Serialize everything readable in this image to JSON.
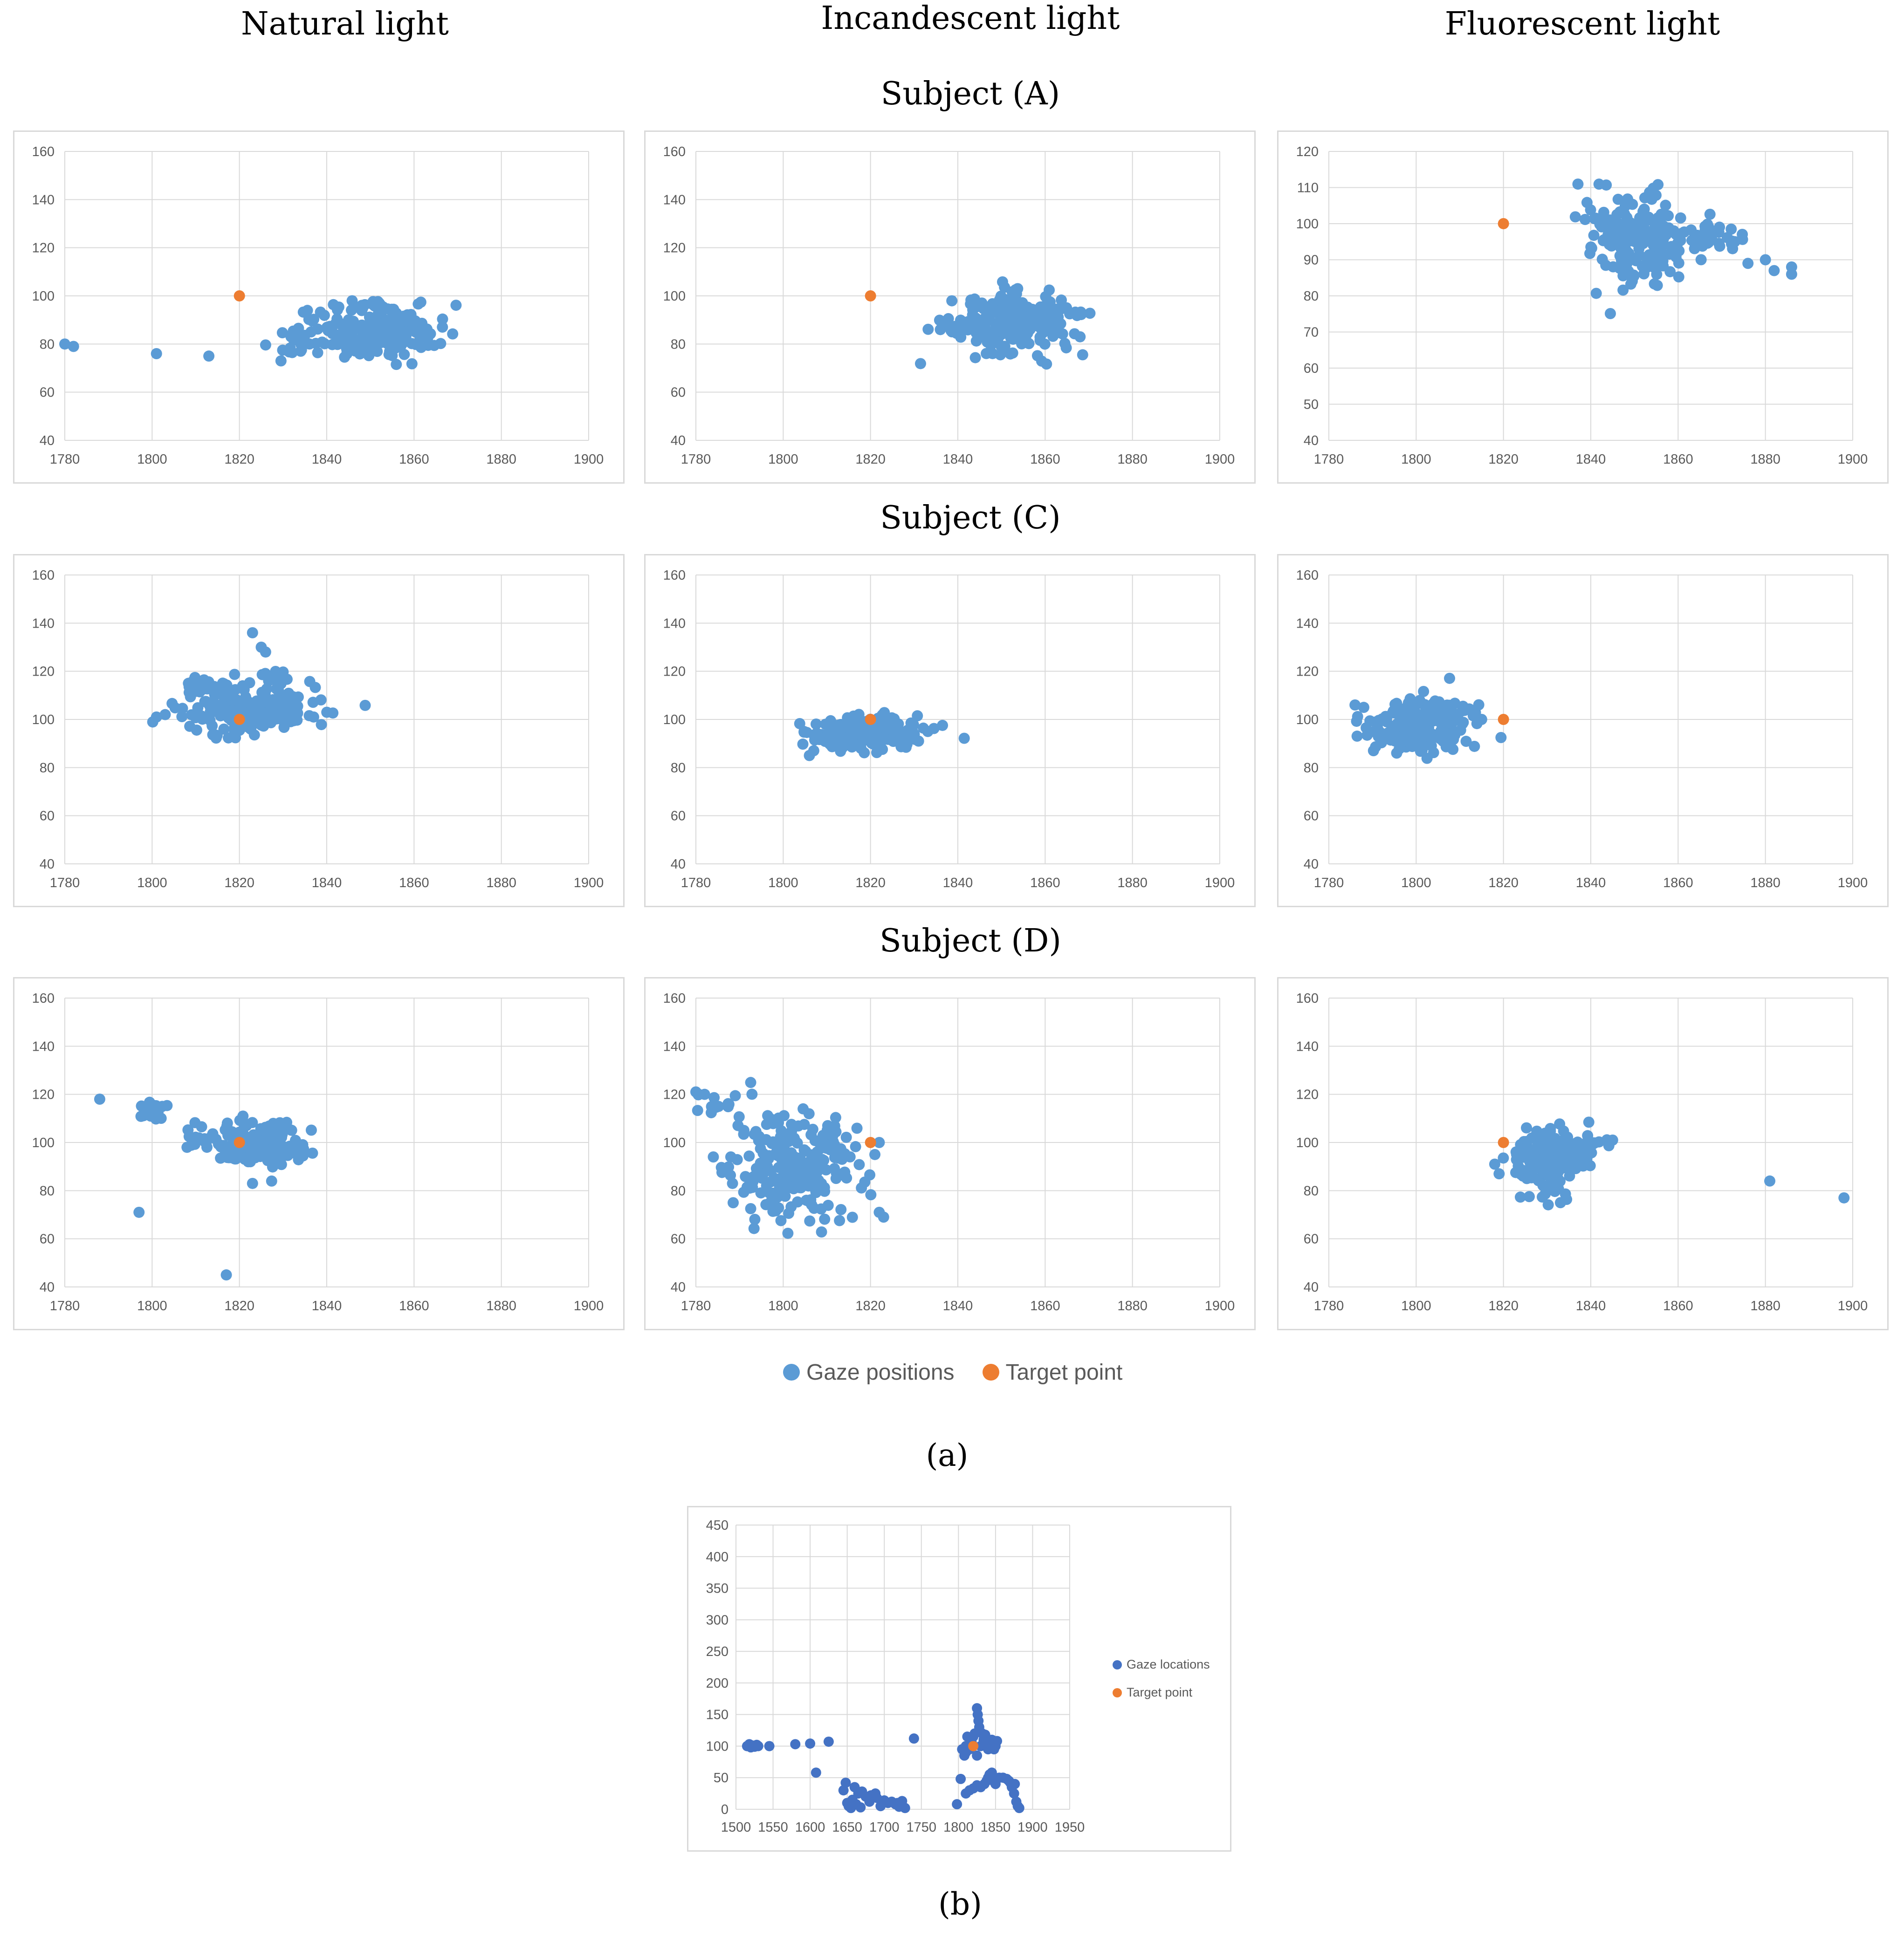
{
  "colors": {
    "gaze": "#5b9bd5",
    "target": "#ed7d31",
    "gaze_b": "#4472c4",
    "grid": "#d9d9d9",
    "axis_text": "#595959"
  },
  "columns": [
    "Natural light",
    "Incandescent light",
    "Fluorescent light"
  ],
  "subjects": [
    "Subject (A)",
    "Subject (C)",
    "Subject (D)"
  ],
  "legend": {
    "gaze": "Gaze positions",
    "target": "Target point"
  },
  "caption_a": "(a)",
  "caption_b": "(b)",
  "chart_data": [
    {
      "id": "A-natural",
      "type": "scatter",
      "subject": "Subject (A)",
      "lighting": "Natural light",
      "xlim": [
        1780,
        1900
      ],
      "ylim": [
        40,
        160
      ],
      "xticks": [
        1780,
        1800,
        1820,
        1840,
        1860,
        1880,
        1900
      ],
      "yticks": [
        40,
        60,
        80,
        100,
        120,
        140,
        160
      ],
      "target": [
        1820,
        100
      ],
      "outliers": [
        [
          1780,
          80
        ],
        [
          1782,
          79
        ],
        [
          1801,
          76
        ],
        [
          1813,
          75
        ]
      ],
      "clusters": [
        {
          "cx": 1848,
          "cy": 84,
          "sx": 8,
          "sy": 5,
          "n": 170
        },
        {
          "cx": 1857,
          "cy": 88,
          "sx": 4,
          "sy": 4,
          "n": 40
        },
        {
          "cx": 1833,
          "cy": 80,
          "sx": 2,
          "sy": 3,
          "n": 12
        },
        {
          "cx": 1848,
          "cy": 96,
          "sx": 5,
          "sy": 1,
          "n": 14
        }
      ]
    },
    {
      "id": "A-incandescent",
      "type": "scatter",
      "subject": "Subject (A)",
      "lighting": "Incandescent light",
      "xlim": [
        1780,
        1900
      ],
      "ylim": [
        40,
        160
      ],
      "xticks": [
        1780,
        1800,
        1820,
        1840,
        1860,
        1880,
        1900
      ],
      "yticks": [
        40,
        60,
        80,
        100,
        120,
        140,
        160
      ],
      "target": [
        1820,
        100
      ],
      "outliers": [
        [
          1836,
          86
        ],
        [
          1868,
          83
        ]
      ],
      "clusters": [
        {
          "cx": 1851,
          "cy": 88,
          "sx": 6,
          "sy": 6,
          "n": 190
        },
        {
          "cx": 1840,
          "cy": 86,
          "sx": 3,
          "sy": 1,
          "n": 10
        },
        {
          "cx": 1862,
          "cy": 92,
          "sx": 3,
          "sy": 3,
          "n": 20
        }
      ]
    },
    {
      "id": "A-fluorescent",
      "type": "scatter",
      "subject": "Subject (A)",
      "lighting": "Fluorescent light",
      "xlim": [
        1780,
        1900
      ],
      "ylim": [
        40,
        120
      ],
      "xticks": [
        1780,
        1800,
        1820,
        1840,
        1860,
        1880,
        1900
      ],
      "yticks": [
        40,
        50,
        60,
        70,
        80,
        90,
        100,
        110,
        120
      ],
      "target": [
        1820,
        100
      ],
      "outliers": [
        [
          1876,
          89
        ],
        [
          1880,
          90
        ],
        [
          1886,
          86
        ],
        [
          1886,
          88
        ],
        [
          1882,
          87
        ]
      ],
      "clusters": [
        {
          "cx": 1852,
          "cy": 96,
          "sx": 5,
          "sy": 6,
          "n": 170
        },
        {
          "cx": 1867,
          "cy": 96,
          "sx": 4,
          "sy": 2,
          "n": 30
        },
        {
          "cx": 1842,
          "cy": 102,
          "sx": 2,
          "sy": 4,
          "n": 20
        }
      ]
    },
    {
      "id": "C-natural",
      "type": "scatter",
      "subject": "Subject (C)",
      "lighting": "Natural light",
      "xlim": [
        1780,
        1900
      ],
      "ylim": [
        40,
        160
      ],
      "xticks": [
        1780,
        1800,
        1820,
        1840,
        1860,
        1880,
        1900
      ],
      "yticks": [
        40,
        60,
        80,
        100,
        120,
        140,
        160
      ],
      "target": [
        1820,
        100
      ],
      "outliers": [
        [
          1823,
          136
        ],
        [
          1825,
          130
        ],
        [
          1826,
          128
        ],
        [
          1801,
          101
        ],
        [
          1803,
          102
        ],
        [
          1837,
          101
        ]
      ],
      "clusters": [
        {
          "cx": 1822,
          "cy": 104,
          "sx": 8,
          "sy": 5,
          "n": 200
        },
        {
          "cx": 1812,
          "cy": 114,
          "sx": 3,
          "sy": 2,
          "n": 20
        },
        {
          "cx": 1829,
          "cy": 118,
          "sx": 2,
          "sy": 2,
          "n": 10
        }
      ]
    },
    {
      "id": "C-incandescent",
      "type": "scatter",
      "subject": "Subject (C)",
      "lighting": "Incandescent light",
      "xlim": [
        1780,
        1900
      ],
      "ylim": [
        40,
        160
      ],
      "xticks": [
        1780,
        1800,
        1820,
        1840,
        1860,
        1880,
        1900
      ],
      "yticks": [
        40,
        60,
        80,
        100,
        120,
        140,
        160
      ],
      "target": [
        1820,
        100
      ],
      "outliers": [
        [
          1806,
          85
        ],
        [
          1807,
          87
        ],
        [
          1831,
          91
        ]
      ],
      "clusters": [
        {
          "cx": 1818,
          "cy": 94,
          "sx": 6,
          "sy": 3.5,
          "n": 210
        }
      ]
    },
    {
      "id": "C-fluorescent",
      "type": "scatter",
      "subject": "Subject (C)",
      "lighting": "Fluorescent light",
      "xlim": [
        1780,
        1900
      ],
      "ylim": [
        40,
        160
      ],
      "xticks": [
        1780,
        1800,
        1820,
        1840,
        1860,
        1880,
        1900
      ],
      "yticks": [
        40,
        60,
        80,
        100,
        120,
        140,
        160
      ],
      "target": [
        1820,
        100
      ],
      "outliers": [
        [
          1786,
          106
        ],
        [
          1788,
          105
        ],
        [
          1815,
          100
        ]
      ],
      "clusters": [
        {
          "cx": 1800,
          "cy": 97,
          "sx": 6,
          "sy": 5,
          "n": 200
        },
        {
          "cx": 1807,
          "cy": 104,
          "sx": 3,
          "sy": 2,
          "n": 30
        }
      ]
    },
    {
      "id": "D-natural",
      "type": "scatter",
      "subject": "Subject (D)",
      "lighting": "Natural light",
      "xlim": [
        1780,
        1900
      ],
      "ylim": [
        40,
        160
      ],
      "xticks": [
        1780,
        1800,
        1820,
        1840,
        1860,
        1880,
        1900
      ],
      "yticks": [
        40,
        60,
        80,
        100,
        120,
        140,
        160
      ],
      "target": [
        1820,
        100
      ],
      "outliers": [
        [
          1788,
          118
        ],
        [
          1797,
          71
        ],
        [
          1817,
          45
        ],
        [
          1823,
          83
        ],
        [
          1808,
          98
        ]
      ],
      "clusters": [
        {
          "cx": 1825,
          "cy": 99,
          "sx": 5,
          "sy": 5,
          "n": 170
        },
        {
          "cx": 1800,
          "cy": 113,
          "sx": 2,
          "sy": 2,
          "n": 20
        },
        {
          "cx": 1812,
          "cy": 103,
          "sx": 3,
          "sy": 3,
          "n": 15
        }
      ]
    },
    {
      "id": "D-incandescent",
      "type": "scatter",
      "subject": "Subject (D)",
      "lighting": "Incandescent light",
      "xlim": [
        1780,
        1900
      ],
      "ylim": [
        40,
        160
      ],
      "xticks": [
        1780,
        1800,
        1820,
        1840,
        1860,
        1880,
        1900
      ],
      "yticks": [
        40,
        60,
        80,
        100,
        120,
        140,
        160
      ],
      "target": [
        1820,
        100
      ],
      "outliers": [
        [
          1780,
          121
        ],
        [
          1782,
          120
        ],
        [
          1784,
          94
        ],
        [
          1788,
          94
        ],
        [
          1821,
          95
        ],
        [
          1822,
          100
        ],
        [
          1823,
          69
        ],
        [
          1822,
          71
        ],
        [
          1791,
          105
        ]
      ],
      "clusters": [
        {
          "cx": 1802,
          "cy": 90,
          "sx": 6,
          "sy": 11,
          "n": 220
        },
        {
          "cx": 1784,
          "cy": 116,
          "sx": 3,
          "sy": 3,
          "n": 12
        },
        {
          "cx": 1812,
          "cy": 100,
          "sx": 3,
          "sy": 4,
          "n": 20
        }
      ]
    },
    {
      "id": "D-fluorescent",
      "type": "scatter",
      "subject": "Subject (D)",
      "lighting": "Fluorescent light",
      "xlim": [
        1780,
        1900
      ],
      "ylim": [
        40,
        160
      ],
      "xticks": [
        1780,
        1800,
        1820,
        1840,
        1860,
        1880,
        1900
      ],
      "yticks": [
        40,
        60,
        80,
        100,
        120,
        140,
        160
      ],
      "target": [
        1820,
        100
      ],
      "outliers": [
        [
          1881,
          84
        ],
        [
          1898,
          77
        ],
        [
          1845,
          101
        ],
        [
          1818,
          91
        ],
        [
          1819,
          87
        ]
      ],
      "clusters": [
        {
          "cx": 1830,
          "cy": 94,
          "sx": 4,
          "sy": 6,
          "n": 180
        },
        {
          "cx": 1840,
          "cy": 98,
          "sx": 3,
          "sy": 2,
          "n": 15
        },
        {
          "cx": 1830,
          "cy": 77,
          "sx": 2,
          "sy": 3,
          "n": 10
        }
      ]
    },
    {
      "id": "b",
      "type": "scatter",
      "caption": "(b)",
      "xlim": [
        1500,
        1950
      ],
      "ylim": [
        0,
        450
      ],
      "xticks": [
        1500,
        1550,
        1600,
        1650,
        1700,
        1750,
        1800,
        1850,
        1900,
        1950
      ],
      "yticks": [
        0,
        50,
        100,
        150,
        200,
        250,
        300,
        350,
        400,
        450
      ],
      "legend": {
        "gaze": "Gaze locations",
        "target": "Target point"
      },
      "target": [
        1820,
        100
      ],
      "points": [
        [
          1515,
          100
        ],
        [
          1518,
          103
        ],
        [
          1520,
          98
        ],
        [
          1522,
          101
        ],
        [
          1525,
          99
        ],
        [
          1528,
          102
        ],
        [
          1530,
          100
        ],
        [
          1545,
          100
        ],
        [
          1580,
          103
        ],
        [
          1600,
          104
        ],
        [
          1608,
          58
        ],
        [
          1625,
          107
        ],
        [
          1645,
          30
        ],
        [
          1648,
          42
        ],
        [
          1650,
          10
        ],
        [
          1652,
          5
        ],
        [
          1655,
          2
        ],
        [
          1657,
          15
        ],
        [
          1660,
          35
        ],
        [
          1662,
          8
        ],
        [
          1665,
          25
        ],
        [
          1668,
          3
        ],
        [
          1670,
          28
        ],
        [
          1675,
          20
        ],
        [
          1680,
          12
        ],
        [
          1682,
          22
        ],
        [
          1688,
          25
        ],
        [
          1690,
          18
        ],
        [
          1695,
          5
        ],
        [
          1700,
          14
        ],
        [
          1705,
          10
        ],
        [
          1710,
          12
        ],
        [
          1715,
          8
        ],
        [
          1718,
          10
        ],
        [
          1720,
          4
        ],
        [
          1724,
          13
        ],
        [
          1728,
          2
        ],
        [
          1740,
          112
        ],
        [
          1798,
          8
        ],
        [
          1803,
          48
        ],
        [
          1805,
          95
        ],
        [
          1808,
          85
        ],
        [
          1810,
          90
        ],
        [
          1810,
          100
        ],
        [
          1812,
          115
        ],
        [
          1815,
          95
        ],
        [
          1818,
          105
        ],
        [
          1820,
          115
        ],
        [
          1822,
          120
        ],
        [
          1825,
          160
        ],
        [
          1826,
          150
        ],
        [
          1827,
          140
        ],
        [
          1828,
          130
        ],
        [
          1825,
          85
        ],
        [
          1830,
          100
        ],
        [
          1832,
          120
        ],
        [
          1834,
          110
        ],
        [
          1836,
          118
        ],
        [
          1838,
          105
        ],
        [
          1840,
          95
        ],
        [
          1842,
          100
        ],
        [
          1845,
          110
        ],
        [
          1848,
          95
        ],
        [
          1850,
          100
        ],
        [
          1852,
          108
        ],
        [
          1820,
          33
        ],
        [
          1825,
          38
        ],
        [
          1830,
          35
        ],
        [
          1835,
          40
        ],
        [
          1838,
          45
        ],
        [
          1840,
          50
        ],
        [
          1842,
          55
        ],
        [
          1845,
          58
        ],
        [
          1847,
          45
        ],
        [
          1850,
          40
        ],
        [
          1855,
          50
        ],
        [
          1860,
          50
        ],
        [
          1865,
          48
        ],
        [
          1868,
          45
        ],
        [
          1870,
          42
        ],
        [
          1872,
          35
        ],
        [
          1875,
          25
        ],
        [
          1878,
          12
        ],
        [
          1880,
          5
        ],
        [
          1882,
          2
        ],
        [
          1876,
          40
        ],
        [
          1815,
          30
        ],
        [
          1810,
          25
        ]
      ]
    }
  ]
}
